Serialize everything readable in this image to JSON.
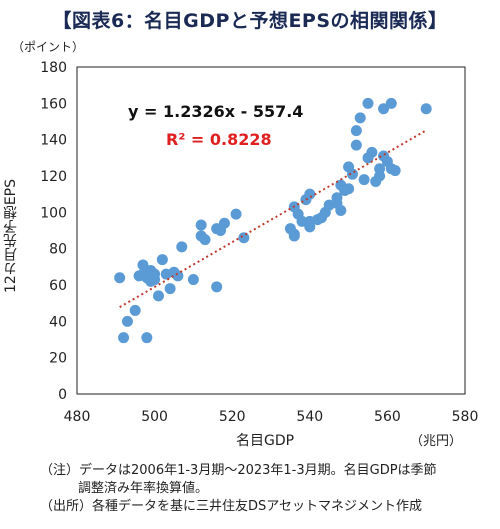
{
  "title": "【図表6：名目GDPと予想EPSの相関関係】",
  "notes": {
    "note1_line1": "（注）データは2006年1-3月期～2023年1-3月期。名目GDPは季節",
    "note1_line2": "調整済み年率換算値。",
    "source": "（出所）各種データを基に三井住友DSアセットマネジメント作成"
  },
  "colors": {
    "points": "#5b9bd5",
    "trend": "#c0392b",
    "r2": "#e02020"
  },
  "chart_data": {
    "type": "scatter",
    "xlabel": "名目GDP",
    "ylabel": "12カ月先予想EPS",
    "x_unit": "（兆円）",
    "y_unit": "（ポイント）",
    "xlim": [
      480,
      580
    ],
    "ylim": [
      0,
      180
    ],
    "x_ticks": [
      480,
      500,
      520,
      540,
      560,
      580
    ],
    "y_ticks": [
      0,
      20,
      40,
      60,
      80,
      100,
      120,
      140,
      160,
      180
    ],
    "trendline": {
      "slope": 1.2326,
      "intercept": -557.4,
      "x_range": [
        491,
        570
      ],
      "style": "dotted"
    },
    "equation": "y = 1.2326x - 557.4",
    "r_squared": "R² = 0.8228",
    "points": [
      [
        491,
        64
      ],
      [
        492,
        31
      ],
      [
        493,
        40
      ],
      [
        495,
        46
      ],
      [
        496,
        65
      ],
      [
        497,
        71
      ],
      [
        497,
        66
      ],
      [
        498,
        31
      ],
      [
        498,
        64
      ],
      [
        499,
        68
      ],
      [
        499,
        62
      ],
      [
        500,
        66
      ],
      [
        500,
        63
      ],
      [
        501,
        54
      ],
      [
        502,
        74
      ],
      [
        503,
        66
      ],
      [
        504,
        58
      ],
      [
        505,
        67
      ],
      [
        506,
        65
      ],
      [
        507,
        81
      ],
      [
        510,
        63
      ],
      [
        512,
        87
      ],
      [
        512,
        93
      ],
      [
        513,
        85
      ],
      [
        516,
        59
      ],
      [
        516,
        91
      ],
      [
        517,
        90
      ],
      [
        518,
        94
      ],
      [
        521,
        99
      ],
      [
        523,
        86
      ],
      [
        535,
        91
      ],
      [
        536,
        88
      ],
      [
        536,
        87
      ],
      [
        536,
        103
      ],
      [
        537,
        99
      ],
      [
        538,
        95
      ],
      [
        539,
        107
      ],
      [
        540,
        110
      ],
      [
        540,
        95
      ],
      [
        540,
        92
      ],
      [
        542,
        96
      ],
      [
        543,
        97
      ],
      [
        544,
        100
      ],
      [
        545,
        104
      ],
      [
        547,
        108
      ],
      [
        547,
        105
      ],
      [
        548,
        101
      ],
      [
        548,
        115
      ],
      [
        549,
        112
      ],
      [
        550,
        113
      ],
      [
        550,
        125
      ],
      [
        551,
        121
      ],
      [
        552,
        145
      ],
      [
        552,
        137
      ],
      [
        553,
        152
      ],
      [
        554,
        118
      ],
      [
        555,
        160
      ],
      [
        555,
        130
      ],
      [
        556,
        133
      ],
      [
        557,
        117
      ],
      [
        558,
        124
      ],
      [
        558,
        120
      ],
      [
        559,
        157
      ],
      [
        559,
        131
      ],
      [
        560,
        128
      ],
      [
        561,
        124
      ],
      [
        561,
        160
      ],
      [
        562,
        123
      ],
      [
        570,
        157
      ]
    ]
  }
}
